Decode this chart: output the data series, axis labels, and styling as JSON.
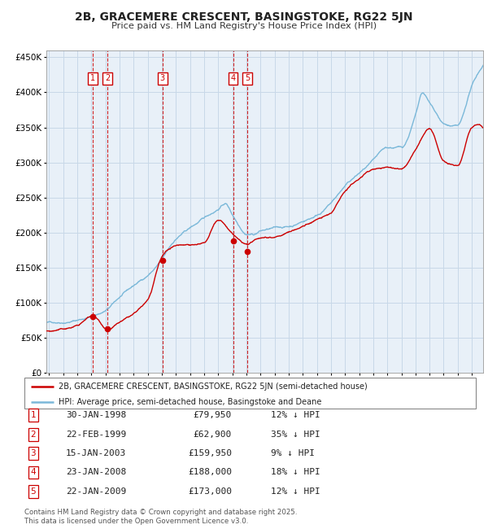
{
  "title": "2B, GRACEMERE CRESCENT, BASINGSTOKE, RG22 5JN",
  "subtitle": "Price paid vs. HM Land Registry's House Price Index (HPI)",
  "legend_line1": "2B, GRACEMERE CRESCENT, BASINGSTOKE, RG22 5JN (semi-detached house)",
  "legend_line2": "HPI: Average price, semi-detached house, Basingstoke and Deane",
  "footer": "Contains HM Land Registry data © Crown copyright and database right 2025.\nThis data is licensed under the Open Government Licence v3.0.",
  "transactions": [
    {
      "num": 1,
      "date": "30-JAN-1998",
      "price": 79950,
      "pct": "12%",
      "year": 1998.08
    },
    {
      "num": 2,
      "date": "22-FEB-1999",
      "price": 62900,
      "pct": "35%",
      "year": 1999.14
    },
    {
      "num": 3,
      "date": "15-JAN-2003",
      "price": 159950,
      "pct": "9%",
      "year": 2003.04
    },
    {
      "num": 4,
      "date": "23-JAN-2008",
      "price": 188000,
      "pct": "18%",
      "year": 2008.06
    },
    {
      "num": 5,
      "date": "22-JAN-2009",
      "price": 173000,
      "pct": "12%",
      "year": 2009.06
    }
  ],
  "hpi_color": "#7ab8d9",
  "price_color": "#cc0000",
  "vline_color": "#cc0000",
  "grid_color": "#c8d8e8",
  "background_color": "#e8f0f8",
  "ylim": [
    0,
    460000
  ],
  "xlim_start": 1994.8,
  "xlim_end": 2025.8,
  "hpi_anchors_x": [
    1995,
    1996,
    1997,
    1998,
    1999,
    2000,
    2001,
    2002,
    2003,
    2004,
    2005,
    2006,
    2007,
    2007.5,
    2008,
    2008.5,
    2009,
    2009.5,
    2010,
    2011,
    2012,
    2013,
    2014,
    2015,
    2016,
    2017,
    2018,
    2019,
    2020,
    2021,
    2021.5,
    2022,
    2022.5,
    2023,
    2024,
    2025,
    2025.5
  ],
  "hpi_anchors_y": [
    72000,
    74000,
    78000,
    84000,
    92000,
    110000,
    125000,
    140000,
    162000,
    190000,
    205000,
    218000,
    232000,
    240000,
    225000,
    210000,
    200000,
    200000,
    205000,
    208000,
    210000,
    218000,
    228000,
    245000,
    268000,
    285000,
    300000,
    315000,
    315000,
    360000,
    390000,
    375000,
    360000,
    345000,
    340000,
    395000,
    415000
  ],
  "price_anchors_x": [
    1995,
    1996,
    1997,
    1998.08,
    1999.14,
    2000,
    2001,
    2002,
    2003.04,
    2004,
    2005,
    2006,
    2007,
    2008.06,
    2009.06,
    2010,
    2011,
    2012,
    2013,
    2014,
    2015,
    2016,
    2017,
    2018,
    2019,
    2020,
    2021,
    2022,
    2023,
    2024,
    2025,
    2025.5
  ],
  "price_anchors_y": [
    60000,
    62000,
    67000,
    79950,
    62900,
    72000,
    82000,
    100000,
    159950,
    175000,
    178000,
    180000,
    210000,
    188000,
    173000,
    182000,
    185000,
    192000,
    200000,
    210000,
    218000,
    250000,
    268000,
    282000,
    285000,
    283000,
    310000,
    340000,
    295000,
    285000,
    340000,
    345000
  ]
}
